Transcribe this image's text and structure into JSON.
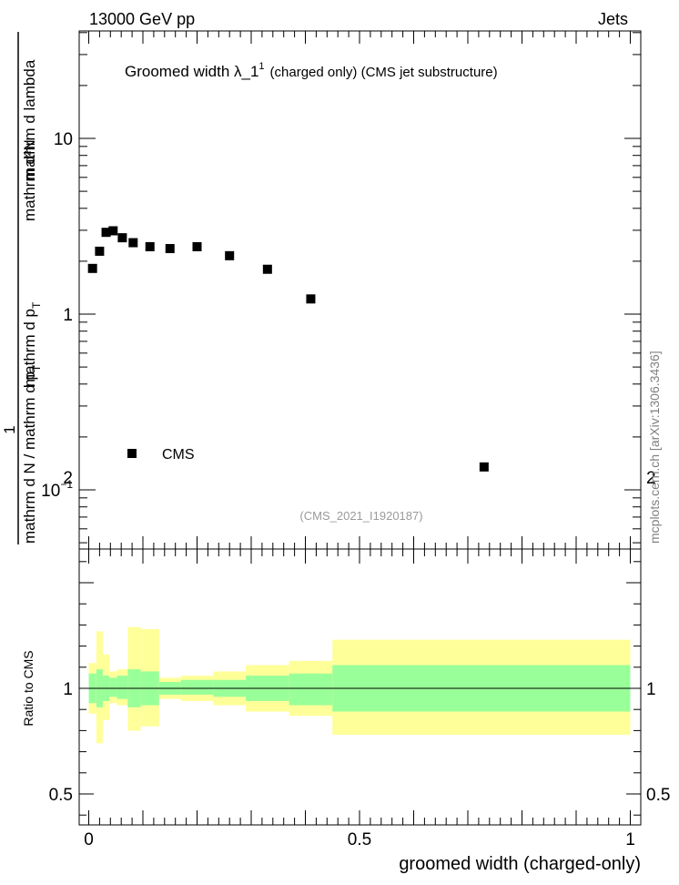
{
  "header": {
    "left": "13000 GeV pp",
    "right": "Jets"
  },
  "watermark": "mcplots.cern.ch [arXiv:1306.3436]",
  "chart_data": [
    {
      "type": "scatter",
      "title": "Groomed width  λ_1",
      "title_sup": "1",
      "title_suffix": "(charged only) (CMS jet substructure)",
      "analysis_id": "(CMS_2021_I1920187)",
      "ylabel_top": "mathrm d²N",
      "ylabel_bottom": "mathrm d N / mathrm d p",
      "ylabel_left_factor": "1",
      "ylabel_top_part2": "mathrm d p",
      "ylabel_top_part3": "mathrm d lambda",
      "ylabel_sub": "T",
      "yscale": "log",
      "xlim": [
        0,
        1
      ],
      "ylim": [
        0.05,
        40
      ],
      "yticks": [
        {
          "value": 0.1,
          "label": "10",
          "sup": "−1"
        },
        {
          "value": 1,
          "label": "1",
          "sup": ""
        },
        {
          "value": 10,
          "label": "10",
          "sup": ""
        }
      ],
      "legend": {
        "label": "CMS",
        "placement": "lower-left"
      },
      "series": [
        {
          "name": "CMS",
          "color": "#000000",
          "points": [
            {
              "x": 0.007,
              "y": 1.82
            },
            {
              "x": 0.02,
              "y": 2.28
            },
            {
              "x": 0.032,
              "y": 2.92
            },
            {
              "x": 0.045,
              "y": 2.98
            },
            {
              "x": 0.062,
              "y": 2.72
            },
            {
              "x": 0.082,
              "y": 2.55
            },
            {
              "x": 0.113,
              "y": 2.42
            },
            {
              "x": 0.15,
              "y": 2.36
            },
            {
              "x": 0.2,
              "y": 2.42
            },
            {
              "x": 0.26,
              "y": 2.15
            },
            {
              "x": 0.33,
              "y": 1.8
            },
            {
              "x": 0.41,
              "y": 1.22
            },
            {
              "x": 0.73,
              "y": 0.135
            }
          ]
        }
      ]
    },
    {
      "type": "area",
      "ylabel": "Ratio to CMS",
      "xlabel": "groomed width (charged-only)",
      "xlim": [
        0,
        1
      ],
      "ylim": [
        0.3,
        2.35
      ],
      "xticks": [
        {
          "value": 0,
          "label": "0"
        },
        {
          "value": 0.5,
          "label": "0.5"
        },
        {
          "value": 1,
          "label": "1"
        }
      ],
      "yticks": [
        {
          "value": 0.5,
          "label": "0.5"
        },
        {
          "value": 1,
          "label": "1"
        },
        {
          "value": 2,
          "label": "2"
        }
      ],
      "colors": {
        "inner": "#99ff99",
        "outer": "#ffff99",
        "line": "#000000"
      },
      "bands": [
        {
          "x0": 0.0,
          "x1": 0.014,
          "stat": [
            0.93,
            1.07
          ],
          "total": [
            0.88,
            1.12
          ]
        },
        {
          "x0": 0.014,
          "x1": 0.026,
          "stat": [
            0.91,
            1.09
          ],
          "total": [
            0.74,
            1.27
          ]
        },
        {
          "x0": 0.026,
          "x1": 0.038,
          "stat": [
            0.94,
            1.06
          ],
          "total": [
            0.85,
            1.16
          ]
        },
        {
          "x0": 0.038,
          "x1": 0.052,
          "stat": [
            0.96,
            1.05
          ],
          "total": [
            0.93,
            1.08
          ]
        },
        {
          "x0": 0.052,
          "x1": 0.072,
          "stat": [
            0.95,
            1.06
          ],
          "total": [
            0.92,
            1.09
          ]
        },
        {
          "x0": 0.072,
          "x1": 0.096,
          "stat": [
            0.91,
            1.09
          ],
          "total": [
            0.8,
            1.29
          ]
        },
        {
          "x0": 0.096,
          "x1": 0.13,
          "stat": [
            0.92,
            1.08
          ],
          "total": [
            0.82,
            1.28
          ]
        },
        {
          "x0": 0.13,
          "x1": 0.17,
          "stat": [
            0.97,
            1.03
          ],
          "total": [
            0.95,
            1.05
          ]
        },
        {
          "x0": 0.17,
          "x1": 0.23,
          "stat": [
            0.97,
            1.04
          ],
          "total": [
            0.94,
            1.06
          ]
        },
        {
          "x0": 0.23,
          "x1": 0.29,
          "stat": [
            0.96,
            1.04
          ],
          "total": [
            0.92,
            1.08
          ]
        },
        {
          "x0": 0.29,
          "x1": 0.37,
          "stat": [
            0.94,
            1.06
          ],
          "total": [
            0.89,
            1.11
          ]
        },
        {
          "x0": 0.37,
          "x1": 0.45,
          "stat": [
            0.92,
            1.07
          ],
          "total": [
            0.87,
            1.13
          ]
        },
        {
          "x0": 0.45,
          "x1": 1.0,
          "stat": [
            0.89,
            1.11
          ],
          "total": [
            0.78,
            1.23
          ]
        }
      ]
    }
  ]
}
